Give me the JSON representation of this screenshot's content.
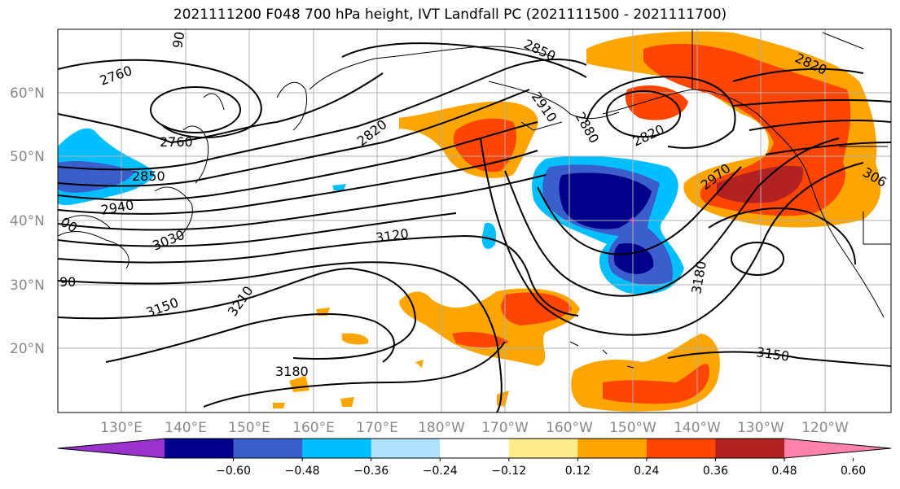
{
  "title": "2021111200 F048 700 hPa height, IVT Landfall PC (2021111500 - 2021111700)",
  "latitude_labels": [
    "60°N",
    "50°N",
    "40°N",
    "30°N",
    "20°N"
  ],
  "longitude_labels": [
    "130°E",
    "140°E",
    "150°E",
    "160°E",
    "170°E",
    "180°W",
    "170°W",
    "160°W",
    "150°W",
    "140°W",
    "130°W",
    "120°W"
  ],
  "contour_labels": [
    "2760",
    "2760",
    "2850",
    "2940",
    "3030",
    "3120",
    "3150",
    "3210",
    "3180",
    "2850",
    "2910",
    "2880",
    "2820",
    "2820",
    "2820",
    "2970",
    "3180",
    "3150",
    "306",
    "00",
    "90",
    "90"
  ],
  "colorbar": {
    "ticks": [
      "−0.60",
      "−0.48",
      "−0.36",
      "−0.24",
      "−0.12",
      "0.12",
      "0.24",
      "0.36",
      "0.48",
      "0.60"
    ],
    "colors": [
      "#9a32cd",
      "#00008b",
      "#3a5fcd",
      "#00bfff",
      "#b0e2ff",
      "#ffffff",
      "#ffec8b",
      "#ffa500",
      "#ff4500",
      "#b22222",
      "#ff82ab"
    ]
  },
  "colors": {
    "contour": "#000000",
    "grid": "#b0b0b0",
    "coast": "#000000"
  }
}
